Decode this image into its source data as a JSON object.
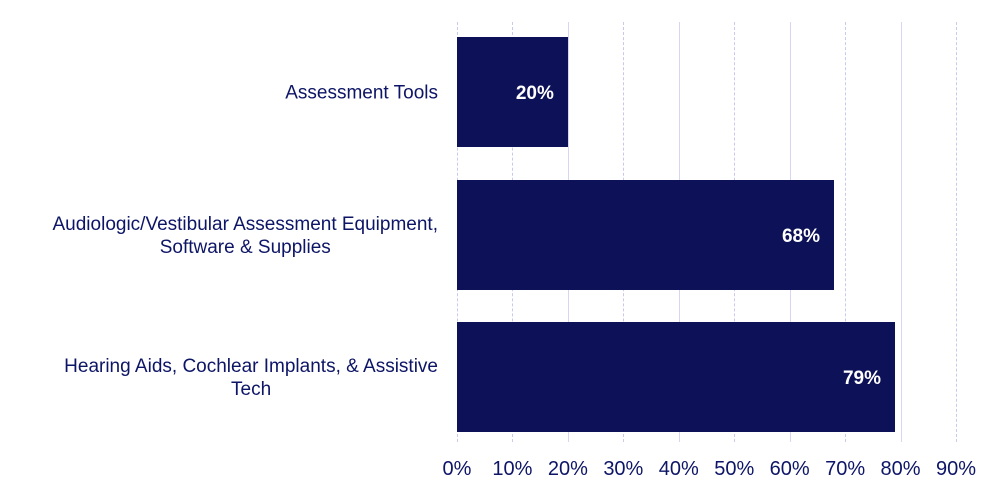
{
  "chart_data": {
    "type": "bar",
    "orientation": "horizontal",
    "title": "",
    "xlabel": "",
    "ylabel": "",
    "categories": [
      "Assessment Tools",
      "Audiologic/Vestibular Assessment Equipment, Software & Supplies",
      "Hearing Aids, Cochlear Implants, & Assistive Tech"
    ],
    "category_label_lines": [
      [
        "Assessment Tools"
      ],
      [
        "Audiologic/Vestibular Assessment Equipment,",
        "Software & Supplies"
      ],
      [
        "Hearing Aids, Cochlear Implants, & Assistive",
        "Tech"
      ]
    ],
    "values": [
      20,
      68,
      79
    ],
    "value_labels": [
      "20%",
      "68%",
      "79%"
    ],
    "xlim": [
      0,
      90
    ],
    "x_ticks": [
      0,
      10,
      20,
      30,
      40,
      50,
      60,
      70,
      80,
      90
    ],
    "x_tick_labels": [
      "0%",
      "10%",
      "20%",
      "30%",
      "40%",
      "50%",
      "60%",
      "70%",
      "80%",
      "90%"
    ],
    "grid": true,
    "legend": null,
    "colors": {
      "bar": "#0d1158",
      "text": "#0d1566",
      "value_label": "#ffffff",
      "grid": "#c9c9ee"
    }
  }
}
